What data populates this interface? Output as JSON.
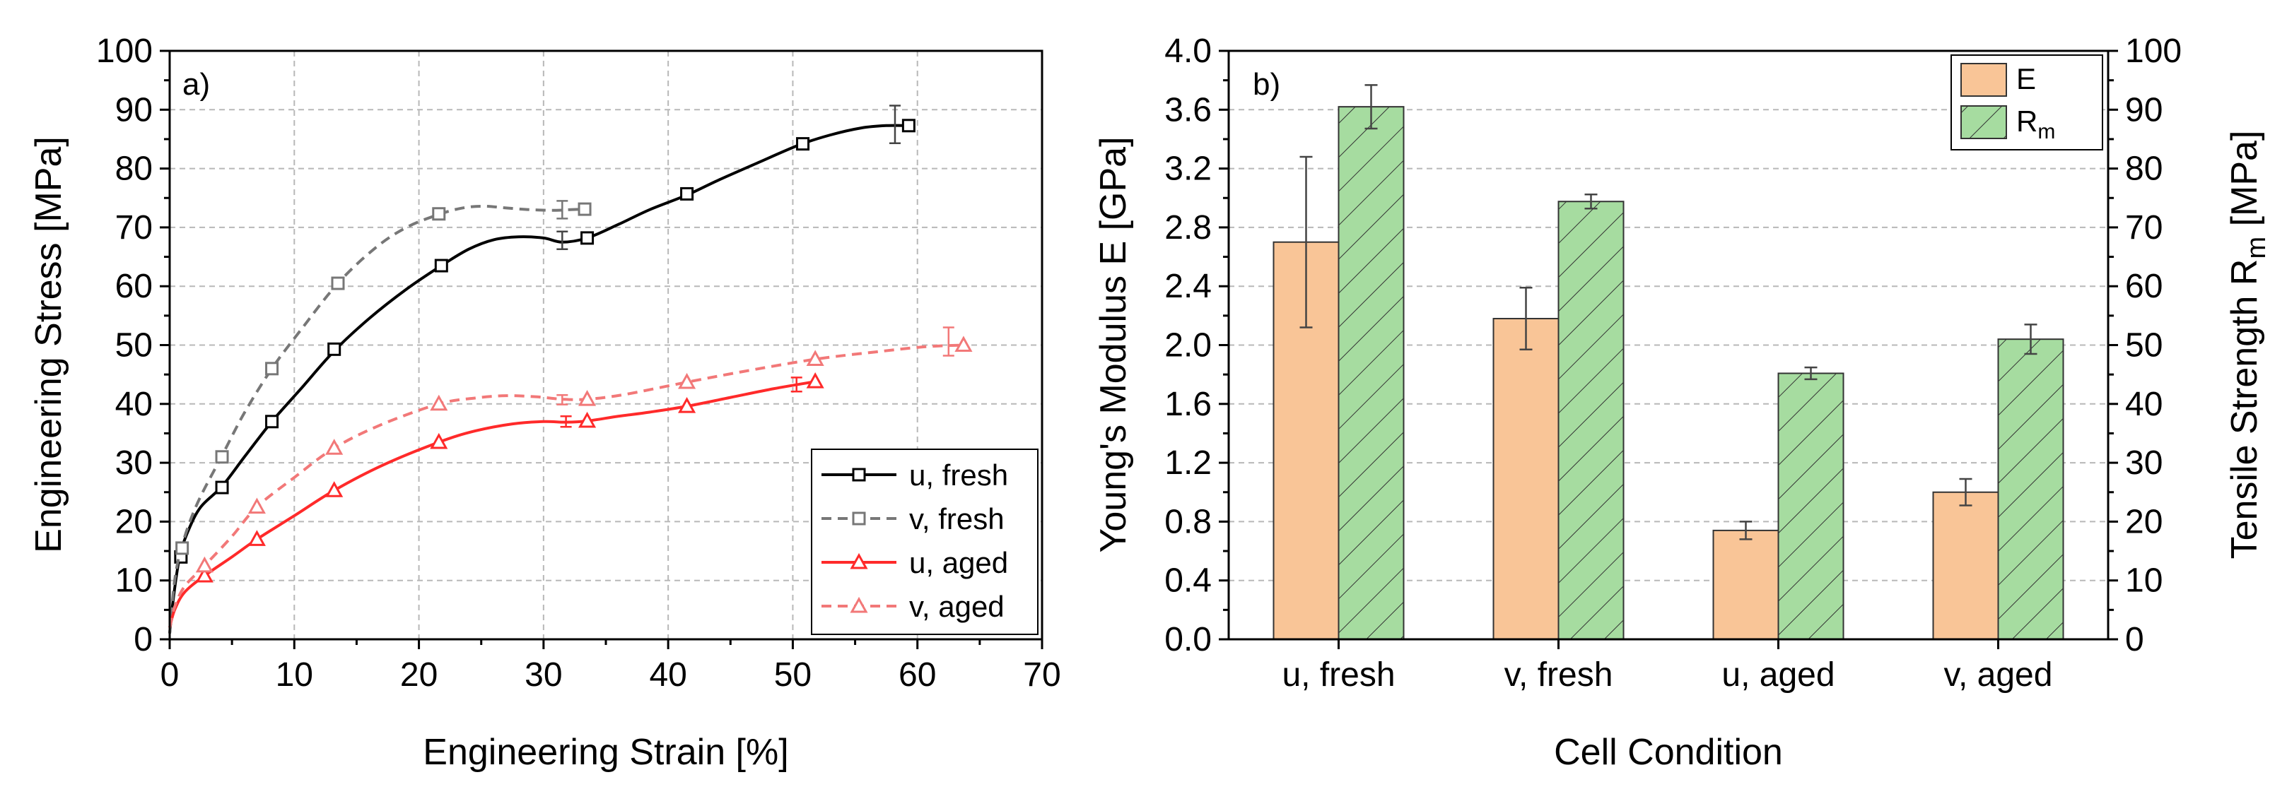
{
  "chart_data": [
    {
      "type": "line",
      "panel_label": "a)",
      "xlabel": "Engineering Strain [%]",
      "ylabel": "Engineering Stress [MPa]",
      "xlim": [
        0,
        70
      ],
      "ylim": [
        0,
        100
      ],
      "x_ticks": [
        0,
        10,
        20,
        30,
        40,
        50,
        60,
        70
      ],
      "y_ticks": [
        0,
        10,
        20,
        30,
        40,
        50,
        60,
        70,
        80,
        90,
        100
      ],
      "grid": true,
      "legend_position": "bottom-right",
      "series": [
        {
          "name": "u, fresh",
          "color": "#000000",
          "dashed": false,
          "marker": "square",
          "curve_x": [
            0,
            0.3,
            0.8,
            1.5,
            2.5,
            4.2,
            6,
            8.2,
            10.5,
            13.2,
            16,
            19,
            21.8,
            24,
            26,
            28,
            30,
            31.5,
            33.5,
            36,
            38.5,
            41.5,
            44,
            47,
            50.5,
            53,
            55.5,
            57.5,
            59.3
          ],
          "curve_y": [
            1,
            7,
            14,
            18.5,
            22.5,
            26,
            31,
            37,
            42.5,
            49,
            54.5,
            59.5,
            63.5,
            66.3,
            67.9,
            68.4,
            68.2,
            67.5,
            68.2,
            70.5,
            73,
            75.5,
            78,
            80.8,
            84,
            85.7,
            86.9,
            87.3,
            87.3
          ],
          "markers_x": [
            0.9,
            4.2,
            8.2,
            13.2,
            21.8,
            33.5,
            41.5,
            50.8,
            59.3
          ],
          "markers_y": [
            14,
            25.8,
            37,
            49.3,
            63.5,
            68.2,
            75.7,
            84.2,
            87.3
          ],
          "error_bars": [
            {
              "x": 31.5,
              "y": 67.8,
              "err": 1.5
            },
            {
              "x": 58.2,
              "y": 87.5,
              "err": 3.2
            }
          ]
        },
        {
          "name": "v, fresh",
          "color": "#777777",
          "dashed": true,
          "marker": "square",
          "curve_x": [
            0,
            0.4,
            1,
            2.2,
            4.2,
            6,
            8.2,
            10.5,
            13.5,
            16.5,
            19,
            21.6,
            23.5,
            25.2,
            27,
            29,
            31,
            32,
            33.3
          ],
          "curve_y": [
            1,
            10,
            16,
            23,
            31.2,
            38.5,
            46,
            52.5,
            60.5,
            66.5,
            70,
            72.2,
            73.3,
            73.6,
            73.3,
            73,
            72.9,
            73,
            73.1
          ],
          "markers_x": [
            1,
            4.2,
            8.2,
            13.5,
            21.6,
            33.3
          ],
          "markers_y": [
            15.5,
            31,
            46,
            60.5,
            72.3,
            73.1
          ],
          "error_bars": [
            {
              "x": 31.5,
              "y": 73,
              "err": 1.5
            }
          ]
        },
        {
          "name": "u, aged",
          "color": "#ff2a2a",
          "dashed": false,
          "marker": "triangle",
          "curve_x": [
            0,
            0.4,
            1.2,
            2.8,
            5,
            7,
            10,
            13.2,
            17,
            21.6,
            24.5,
            27.5,
            30,
            31.8,
            33.5,
            36,
            38.5,
            41.5,
            45,
            48.5,
            51.8
          ],
          "curve_y": [
            2,
            5,
            8,
            10.8,
            14,
            17,
            21,
            25.3,
            29.5,
            33.5,
            35.4,
            36.6,
            37,
            36.9,
            37.1,
            37.9,
            38.6,
            39.6,
            41.1,
            42.6,
            43.8
          ],
          "markers_x": [
            2.8,
            7,
            13.2,
            21.6,
            33.5,
            41.5,
            51.8
          ],
          "markers_y": [
            10.8,
            17,
            25.3,
            33.5,
            37.1,
            39.6,
            43.8
          ],
          "error_bars": [
            {
              "x": 31.8,
              "y": 37,
              "err": 0.9
            },
            {
              "x": 50.3,
              "y": 43.3,
              "err": 1.2
            }
          ]
        },
        {
          "name": "v, aged",
          "color": "#f27878",
          "dashed": true,
          "marker": "triangle",
          "curve_x": [
            0,
            0.4,
            1.2,
            2.8,
            5,
            7,
            10,
            13.2,
            17,
            21.6,
            24.5,
            27,
            29.5,
            31.5,
            33.5,
            36.5,
            41.5,
            46,
            51.8,
            56.5,
            60.5,
            63.7
          ],
          "curve_y": [
            2,
            5.5,
            9,
            12.5,
            17.5,
            22.5,
            27.5,
            32.5,
            36.5,
            40,
            41,
            41.4,
            41.2,
            40.8,
            40.8,
            41.6,
            43.7,
            45.5,
            47.6,
            48.8,
            49.7,
            50
          ],
          "markers_x": [
            2.8,
            7,
            13.2,
            21.6,
            33.5,
            41.5,
            51.8,
            63.7
          ],
          "markers_y": [
            12.5,
            22.5,
            32.5,
            40,
            40.8,
            43.7,
            47.6,
            50
          ],
          "error_bars": [
            {
              "x": 31.5,
              "y": 40.7,
              "err": 0.8
            },
            {
              "x": 62.5,
              "y": 50.6,
              "err": 2.4
            }
          ]
        }
      ]
    },
    {
      "type": "bar",
      "panel_label": "b)",
      "xlabel": "Cell Condition",
      "ylabel_left": "Young's Modulus E [GPa]",
      "ylabel_right_main": "Tensile Strength R",
      "ylabel_right_sub": "m",
      "ylabel_right_unit": " [MPa]",
      "categories": [
        "u, fresh",
        "v, fresh",
        "u, aged",
        "v, aged"
      ],
      "ylim_left": [
        0,
        4.0
      ],
      "ylim_right": [
        0,
        100
      ],
      "y_ticks_left": [
        "0.0",
        "0.4",
        "0.8",
        "1.2",
        "1.6",
        "2.0",
        "2.4",
        "2.8",
        "3.2",
        "3.6",
        "4.0"
      ],
      "y_ticks_right": [
        "0",
        "10",
        "20",
        "30",
        "40",
        "50",
        "60",
        "70",
        "80",
        "90",
        "100"
      ],
      "grid": true,
      "legend_position": "top-right",
      "series": [
        {
          "name": "E",
          "axis": "left",
          "color": "#f9c597",
          "hatch": false,
          "values": [
            2.7,
            2.18,
            0.74,
            1.0
          ],
          "errors": [
            0.58,
            0.21,
            0.06,
            0.09
          ]
        },
        {
          "name": "R",
          "name_sub": "m",
          "axis": "right",
          "color": "#a6dca0",
          "hatch": true,
          "values": [
            90.5,
            74.4,
            45.2,
            51.0
          ],
          "errors": [
            3.7,
            1.2,
            1.0,
            2.5
          ]
        }
      ]
    }
  ]
}
